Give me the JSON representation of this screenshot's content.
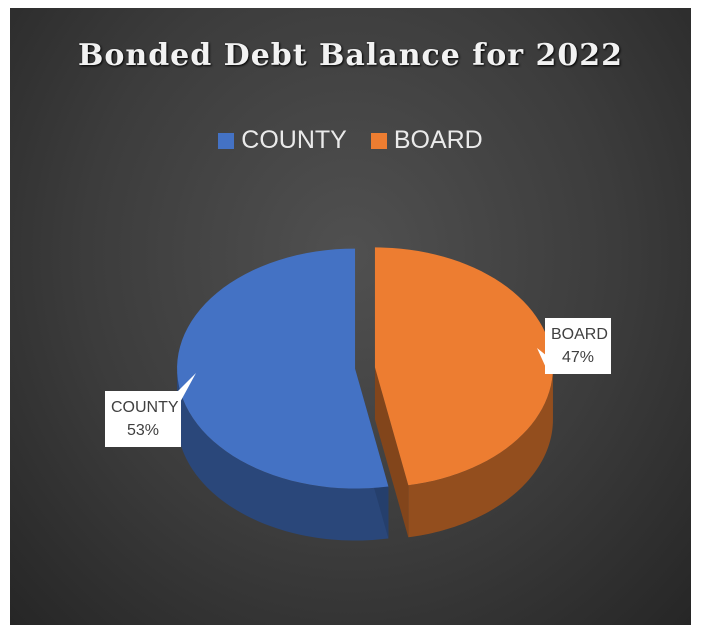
{
  "chart_data": {
    "type": "pie",
    "title": "Bonded Debt Balance for 2022",
    "categories": [
      "COUNTY",
      "BOARD"
    ],
    "values": [
      53,
      47
    ],
    "unit": "%",
    "colors": [
      "#4472c4",
      "#ed7d31"
    ],
    "legend": {
      "position": "top",
      "entries": [
        "COUNTY",
        "BOARD"
      ]
    },
    "data_labels": [
      {
        "category": "COUNTY",
        "value": "53%"
      },
      {
        "category": "BOARD",
        "value": "47%"
      }
    ],
    "style": "3d-exploded"
  }
}
